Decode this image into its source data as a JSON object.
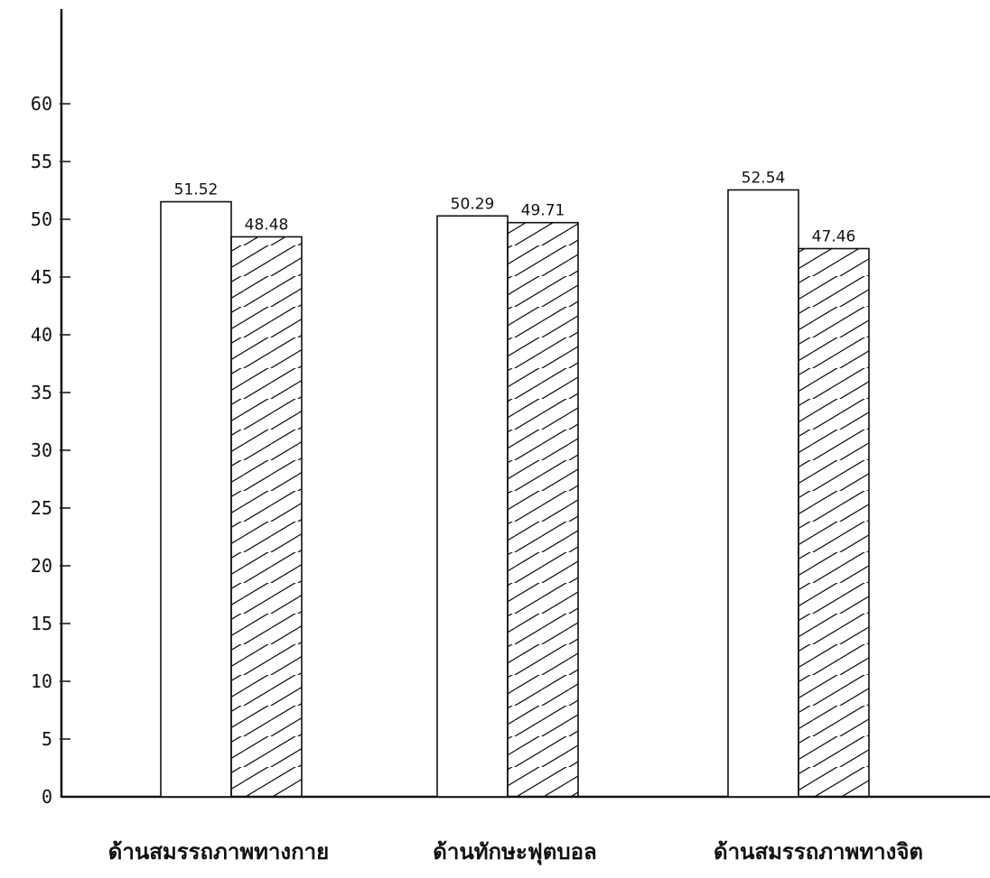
{
  "chart_data": {
    "type": "bar",
    "categories": [
      "ด้านสมรรถภาพทางกาย",
      "ด้านทักษะฟุตบอล",
      "ด้านสมรรถภาพทางจิต"
    ],
    "series": [
      {
        "values": [
          51.52,
          50.29,
          52.54
        ],
        "fill": "plain"
      },
      {
        "values": [
          48.48,
          49.71,
          47.46
        ],
        "fill": "hatched"
      }
    ],
    "data_labels": [
      [
        "51.52",
        "50.29",
        "52.54"
      ],
      [
        "48.48",
        "49.71",
        "47.46"
      ]
    ],
    "yticks": [
      0,
      5,
      10,
      15,
      20,
      25,
      30,
      35,
      40,
      45,
      50,
      55,
      60
    ],
    "ylim": [
      0,
      60
    ],
    "title": "",
    "xlabel": "",
    "ylabel": "",
    "grid": false,
    "legend": "none",
    "colors": {
      "line": "#111111",
      "background": "#ffffff"
    }
  }
}
